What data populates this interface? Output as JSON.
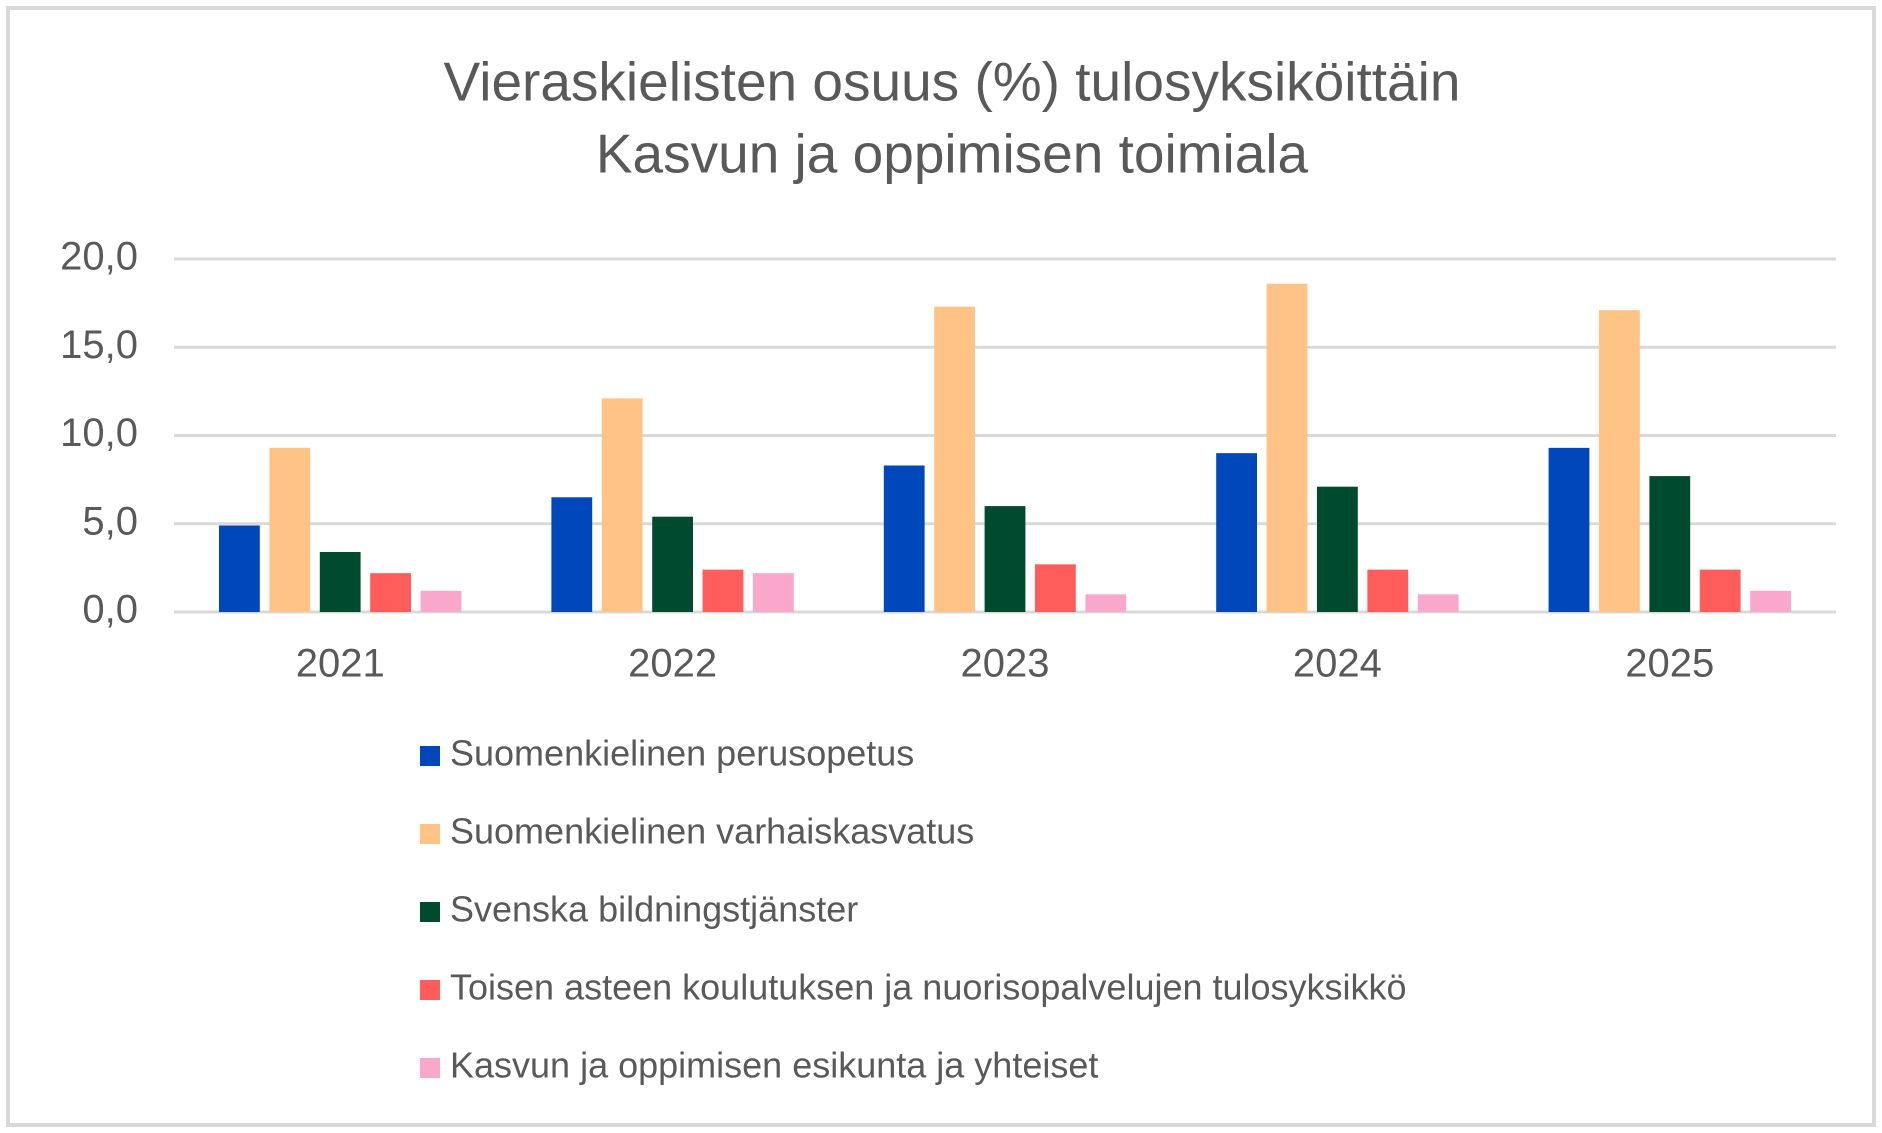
{
  "chart_data": {
    "type": "bar",
    "title": [
      "Vieraskielisten osuus (%) tulosyksiköittäin",
      "Kasvun ja oppimisen toimiala"
    ],
    "categories": [
      "2021",
      "2022",
      "2023",
      "2024",
      "2025"
    ],
    "series": [
      {
        "name": "Suomenkielinen perusopetus",
        "color": "#0047bb",
        "values": [
          4.9,
          6.5,
          8.3,
          9.0,
          9.3
        ]
      },
      {
        "name": "Suomenkielinen varhaiskasvatus",
        "color": "#ffc385",
        "values": [
          9.3,
          12.1,
          17.3,
          18.6,
          17.1
        ]
      },
      {
        "name": "Svenska bildningstjänster",
        "color": "#004b2f",
        "values": [
          3.4,
          5.4,
          6.0,
          7.1,
          7.7
        ]
      },
      {
        "name": "Toisen asteen koulutuksen ja nuorisopalvelujen tulosyksikkö",
        "color": "#ff5c5c",
        "values": [
          2.2,
          2.4,
          2.7,
          2.4,
          2.4
        ]
      },
      {
        "name": "Kasvun ja oppimisen esikunta ja yhteiset",
        "color": "#f9a8cc",
        "values": [
          1.2,
          2.2,
          1.0,
          1.0,
          1.2
        ]
      }
    ],
    "ylim": [
      0,
      20
    ],
    "yticks": [
      {
        "value": 0,
        "label": "0,0"
      },
      {
        "value": 5,
        "label": "5,0"
      },
      {
        "value": 10,
        "label": "10,0"
      },
      {
        "value": 15,
        "label": "15,0"
      },
      {
        "value": 20,
        "label": "20,0"
      }
    ],
    "grid": true,
    "legend": "bottom"
  }
}
